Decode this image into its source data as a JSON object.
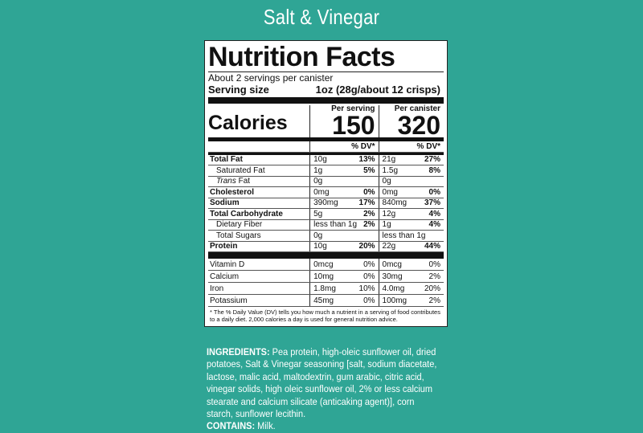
{
  "title": "Salt & Vinegar",
  "label": {
    "heading": "Nutrition Facts",
    "servings": "About 2 servings per canister",
    "serving_size_label": "Serving size",
    "serving_size": "1oz (28g/about 12 crisps)",
    "calories_label": "Calories",
    "per_serving_label": "Per serving",
    "per_canister_label": "Per canister",
    "calories_serving": "150",
    "calories_canister": "320",
    "dv_header": "% DV*",
    "nutrients": [
      {
        "name": "Total Fat",
        "bold": true,
        "s": "10g",
        "sdv": "13%",
        "c": "21g",
        "cdv": "27%"
      },
      {
        "name": "Saturated Fat",
        "indent": true,
        "s": "1g",
        "sdv": "5%",
        "c": "1.5g",
        "cdv": "8%"
      },
      {
        "name": "Trans Fat",
        "indent": true,
        "s": "0g",
        "sdv": "",
        "c": "0g",
        "cdv": ""
      },
      {
        "name": "Cholesterol",
        "bold": true,
        "s": "0mg",
        "sdv": "0%",
        "c": "0mg",
        "cdv": "0%"
      },
      {
        "name": "Sodium",
        "bold": true,
        "s": "390mg",
        "sdv": "17%",
        "c": "840mg",
        "cdv": "37%"
      },
      {
        "name": "Total Carbohydrate",
        "bold": true,
        "s": "5g",
        "sdv": "2%",
        "c": "12g",
        "cdv": "4%"
      },
      {
        "name": "Dietary Fiber",
        "indent": true,
        "s": "less than 1g",
        "sdv": "2%",
        "c": "1g",
        "cdv": "4%"
      },
      {
        "name": "Total Sugars",
        "indent": true,
        "s": "0g",
        "sdv": "",
        "c": "less than 1g",
        "cdv": ""
      },
      {
        "name": "Protein",
        "bold": true,
        "s": "10g",
        "sdv": "20%",
        "c": "22g",
        "cdv": "44%"
      }
    ],
    "vitamins": [
      {
        "name": "Vitamin D",
        "s": "0mcg",
        "sdv": "0%",
        "c": "0mcg",
        "cdv": "0%"
      },
      {
        "name": "Calcium",
        "s": "10mg",
        "sdv": "0%",
        "c": "30mg",
        "cdv": "2%"
      },
      {
        "name": "Iron",
        "s": "1.8mg",
        "sdv": "10%",
        "c": "4.0mg",
        "cdv": "20%"
      },
      {
        "name": "Potassium",
        "s": "45mg",
        "sdv": "0%",
        "c": "100mg",
        "cdv": "2%"
      }
    ],
    "footnote": "* The % Daily Value (DV) tells you how much a nutrient in a serving of food contributes to a daily diet. 2,000 calories a day is used for general nutrition advice."
  },
  "ingredients": {
    "label": "INGREDIENTS:",
    "text": " Pea protein, high-oleic sunflower oil, dried potatoes, Salt & Vinegar seasoning [salt, sodium diacetate, lactose, malic acid, maltodextrin, gum arabic, citric acid, vinegar solids, high oleic sunflower oil, 2% or less calcium stearate and calcium silicate (anticaking agent)], corn starch, sunflower lecithin.",
    "contains_label": "CONTAINS:",
    "contains": " Milk."
  }
}
